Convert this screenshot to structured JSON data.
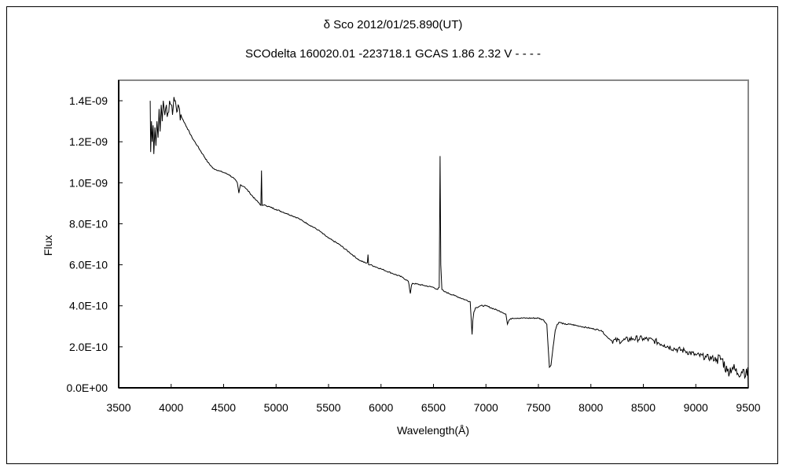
{
  "chart_data": {
    "type": "line",
    "title": "δ Sco    2012/01/25.890(UT)",
    "subtitle": "SCOdelta 160020.01 -223718.1 GCAS 1.86 2.32 V - - - -",
    "xlabel": "Wavelength(Å)",
    "ylabel": "Flux",
    "xlim": [
      3500,
      9500
    ],
    "ylim": [
      0,
      1.5e-09
    ],
    "grid": false,
    "legend": "none",
    "x_ticks": [
      "3500",
      "4000",
      "4500",
      "5000",
      "5500",
      "6000",
      "6500",
      "7000",
      "7500",
      "8000",
      "8500",
      "9000",
      "9500"
    ],
    "x_tick_values": [
      3500,
      4000,
      4500,
      5000,
      5500,
      6000,
      6500,
      7000,
      7500,
      8000,
      8500,
      9000,
      9500
    ],
    "y_ticks": [
      "0.0E+00",
      "2.0E-10",
      "4.0E-10",
      "6.0E-10",
      "8.0E-10",
      "1.0E-09",
      "1.2E-09",
      "1.4E-09"
    ],
    "y_tick_values": [
      0,
      2e-10,
      4e-10,
      6e-10,
      8e-10,
      1e-09,
      1.2e-09,
      1.4e-09
    ],
    "series": [
      {
        "name": "SCOdelta",
        "color": "#000000",
        "x": [
          3800,
          3805,
          3812,
          3820,
          3828,
          3835,
          3845,
          3855,
          3865,
          3875,
          3885,
          3895,
          3905,
          3915,
          3925,
          3940,
          3955,
          3970,
          3985,
          4000,
          4020,
          4040,
          4060,
          4080,
          4100,
          4150,
          4200,
          4250,
          4300,
          4350,
          4400,
          4450,
          4500,
          4550,
          4600,
          4630,
          4645,
          4660,
          4700,
          4750,
          4800,
          4840,
          4855,
          4861,
          4866,
          4875,
          4900,
          4950,
          5000,
          5100,
          5200,
          5300,
          5400,
          5500,
          5600,
          5700,
          5800,
          5850,
          5870,
          5876,
          5882,
          5900,
          6000,
          6100,
          6200,
          6260,
          6280,
          6290,
          6300,
          6400,
          6500,
          6540,
          6555,
          6563,
          6570,
          6580,
          6600,
          6700,
          6800,
          6850,
          6868,
          6875,
          6885,
          6900,
          6950,
          7000,
          7100,
          7150,
          7190,
          7205,
          7220,
          7250,
          7300,
          7400,
          7500,
          7550,
          7580,
          7595,
          7605,
          7620,
          7640,
          7660,
          7680,
          7700,
          7750,
          7800,
          7900,
          8000,
          8100,
          8150,
          8200,
          8300,
          8400,
          8500,
          8600,
          8700,
          8800,
          8900,
          9000,
          9100,
          9200,
          9250,
          9300,
          9350,
          9400,
          9450,
          9490,
          9495,
          9500
        ],
        "y": [
          1.4e-09,
          1.15e-09,
          1.3e-09,
          1.2e-09,
          1.28e-09,
          1.14e-09,
          1.27e-09,
          1.18e-09,
          1.3e-09,
          1.22e-09,
          1.36e-09,
          1.25e-09,
          1.38e-09,
          1.3e-09,
          1.4e-09,
          1.33e-09,
          1.38e-09,
          1.34e-09,
          1.4e-09,
          1.38e-09,
          1.37e-09,
          1.4e-09,
          1.35e-09,
          1.36e-09,
          1.32e-09,
          1.27e-09,
          1.22e-09,
          1.18e-09,
          1.14e-09,
          1.1e-09,
          1.07e-09,
          1.06e-09,
          1.05e-09,
          1.04e-09,
          1.02e-09,
          1e-09,
          9.5e-10,
          9.9e-10,
          9.8e-10,
          9.5e-10,
          9.2e-10,
          9e-10,
          8.9e-10,
          1.06e-09,
          8.9e-10,
          8.9e-10,
          8.9e-10,
          8.8e-10,
          8.7e-10,
          8.5e-10,
          8.3e-10,
          8e-10,
          7.7e-10,
          7.3e-10,
          7e-10,
          6.6e-10,
          6.2e-10,
          6.1e-10,
          6.1e-10,
          6.5e-10,
          6e-10,
          6e-10,
          5.8e-10,
          5.6e-10,
          5.4e-10,
          5.2e-10,
          4.6e-10,
          5e-10,
          5.1e-10,
          5e-10,
          4.9e-10,
          4.8e-10,
          4.9e-10,
          1.13e-09,
          6e-10,
          4.8e-10,
          4.7e-10,
          4.5e-10,
          4.3e-10,
          4.2e-10,
          2.6e-10,
          3.3e-10,
          3.7e-10,
          3.9e-10,
          4e-10,
          4e-10,
          3.8e-10,
          3.7e-10,
          3.6e-10,
          3.1e-10,
          3.3e-10,
          3.4e-10,
          3.4e-10,
          3.4e-10,
          3.4e-10,
          3.3e-10,
          3.1e-10,
          1.8e-10,
          1e-10,
          1.1e-10,
          2e-10,
          2.8e-10,
          3.1e-10,
          3.2e-10,
          3.1e-10,
          3.1e-10,
          3e-10,
          2.9e-10,
          2.8e-10,
          2.5e-10,
          2.3e-10,
          2.3e-10,
          2.4e-10,
          2.4e-10,
          2.3e-10,
          2.1e-10,
          1.9e-10,
          1.8e-10,
          1.6e-10,
          1.5e-10,
          1.4e-10,
          1.4e-10,
          8e-11,
          1e-10,
          7e-11,
          9e-11,
          6e-11,
          1e-10,
          0.0
        ]
      }
    ]
  }
}
